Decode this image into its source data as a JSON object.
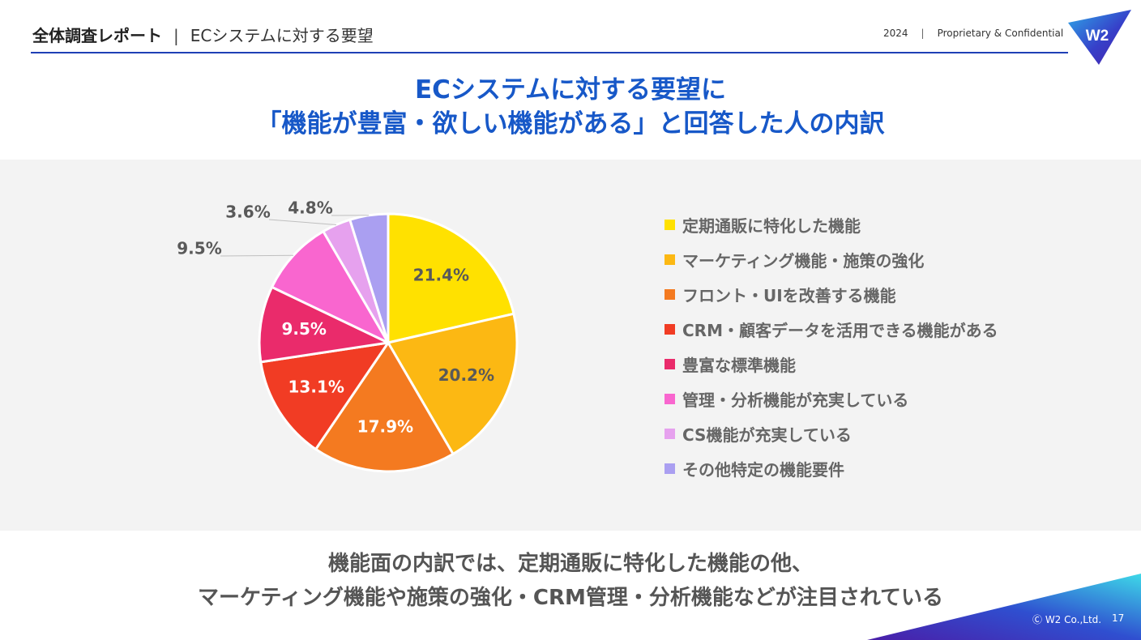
{
  "header": {
    "title": "全体調査レポート",
    "separator": "|",
    "subtitle": "ECシステムに対する要望",
    "year": "2024",
    "confidential": "Proprietary & Confidential",
    "logo_text": "W2"
  },
  "main_title": {
    "line1": "ECシステムに対する要望に",
    "line2": "「機能が豊富・欲しい機能がある」と回答した人の内訳"
  },
  "summary": {
    "line1": "機能面の内訳では、定期通販に特化した機能の他、",
    "line2": "マーケティング機能や施策の強化・CRM管理・分析機能などが注目されている"
  },
  "footer": {
    "copyright": "Ⓒ W2 Co.,Ltd.",
    "page": "17"
  },
  "chart_data": {
    "type": "pie",
    "title": "「機能が豊富・欲しい機能がある」と回答した人の内訳",
    "start_angle_deg": 0,
    "direction": "clockwise",
    "legend_position": "right",
    "slices": [
      {
        "label": "定期通販に特化した機能",
        "value": 21.4,
        "display": "21.4%",
        "color": "#ffe100",
        "label_color": "#595959",
        "label_outside": false
      },
      {
        "label": "マーケティング機能・施策の強化",
        "value": 20.2,
        "display": "20.2%",
        "color": "#fcb813",
        "label_color": "#595959",
        "label_outside": false
      },
      {
        "label": "フロント・UIを改善する機能",
        "value": 17.9,
        "display": "17.9%",
        "color": "#f47a20",
        "label_color": "#ffffff",
        "label_outside": false
      },
      {
        "label": "CRM・顧客データを活用できる機能がある",
        "value": 13.1,
        "display": "13.1%",
        "color": "#f13c24",
        "label_color": "#ffffff",
        "label_outside": false
      },
      {
        "label": "豊富な標準機能",
        "value": 9.5,
        "display": "9.5%",
        "color": "#ea2b6b",
        "label_color": "#ffffff",
        "label_outside": false
      },
      {
        "label": "管理・分析機能が充実している",
        "value": 9.5,
        "display": "9.5%",
        "color": "#f966cf",
        "label_color": "#595959",
        "label_outside": true
      },
      {
        "label": "CS機能が充実している",
        "value": 3.6,
        "display": "3.6%",
        "color": "#e6a1ee",
        "label_color": "#595959",
        "label_outside": true
      },
      {
        "label": "その他特定の機能要件",
        "value": 4.8,
        "display": "4.8%",
        "color": "#aa9ff1",
        "label_color": "#595959",
        "label_outside": true
      }
    ]
  }
}
